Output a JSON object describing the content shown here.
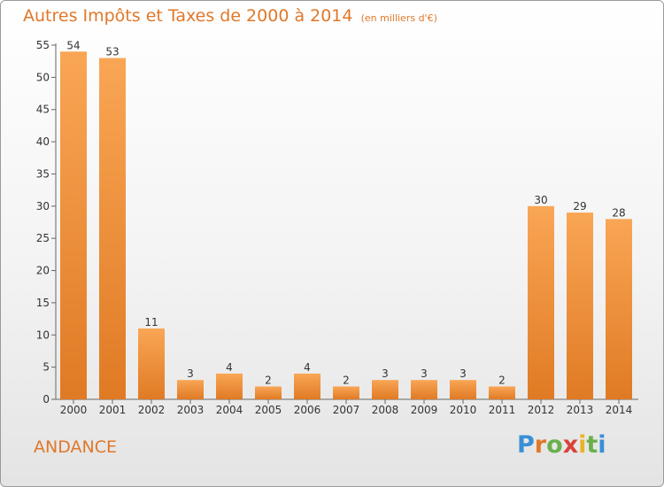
{
  "header": {
    "title": "Autres Impôts et Taxes de 2000 à 2014",
    "subtitle": "(en milliers d'€)"
  },
  "footer": {
    "town": "ANDANCE",
    "brand": [
      "P",
      "r",
      "o",
      "x",
      "i",
      "t",
      "i"
    ]
  },
  "chart_data": {
    "type": "bar",
    "title": "Autres Impôts et Taxes de 2000 à 2014",
    "subtitle": "(en milliers d'€)",
    "categories": [
      "2000",
      "2001",
      "2002",
      "2003",
      "2004",
      "2005",
      "2006",
      "2007",
      "2008",
      "2009",
      "2010",
      "2011",
      "2012",
      "2013",
      "2014"
    ],
    "values": [
      54,
      53,
      11,
      3,
      4,
      2,
      4,
      2,
      3,
      3,
      3,
      2,
      30,
      29,
      28
    ],
    "ylim": [
      0,
      55
    ],
    "yticks": [
      0,
      5,
      10,
      15,
      20,
      25,
      30,
      35,
      40,
      45,
      50,
      55
    ],
    "grid": false,
    "bar_color_light": "#f9a655",
    "bar_color_dark": "#e07a24",
    "text_color": "#e0782a"
  }
}
